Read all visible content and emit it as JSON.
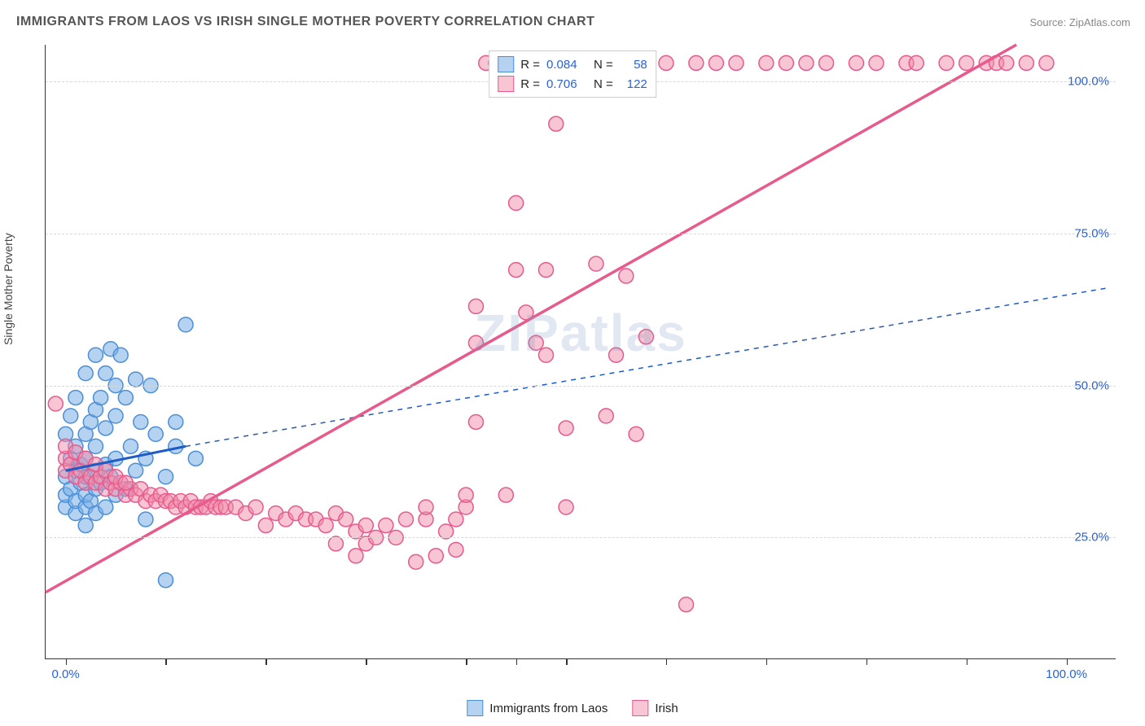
{
  "chart": {
    "type": "scatter",
    "title": "IMMIGRANTS FROM LAOS VS IRISH SINGLE MOTHER POVERTY CORRELATION CHART",
    "source_label": "Source: ZipAtlas.com",
    "ylabel": "Single Mother Poverty",
    "watermark": "ZIPatlas",
    "background_color": "#ffffff",
    "title_color": "#555555",
    "title_fontsize": 16,
    "axis_color": "#333333",
    "grid_color": "#d8d8d8",
    "tick_label_color": "#2962d9",
    "tick_fontsize": 15,
    "xlim": [
      -2,
      105
    ],
    "ylim": [
      5,
      106
    ],
    "ytick_values": [
      25,
      50,
      75,
      100
    ],
    "ytick_labels": [
      "25.0%",
      "50.0%",
      "75.0%",
      "100.0%"
    ],
    "xtick_marks": [
      0,
      10,
      20,
      30,
      40,
      45,
      50,
      60,
      70,
      80,
      90,
      100
    ],
    "xtick_labels": [
      {
        "pos": 0,
        "text": "0.0%"
      },
      {
        "pos": 100,
        "text": "100.0%"
      }
    ],
    "marker_radius": 9,
    "marker_stroke_width": 1.5,
    "series": [
      {
        "name": "Immigrants from Laos",
        "fill": "rgba(120, 175, 230, 0.55)",
        "stroke": "#4a8fd8",
        "swatch_fill": "rgba(120, 175, 230, 0.55)",
        "swatch_border": "#4a8fd8",
        "R": "0.084",
        "N": "58",
        "trend": {
          "solid": {
            "x1": 0,
            "y1": 36,
            "x2": 12,
            "y2": 40,
            "width": 3,
            "color": "#1e5bc6"
          },
          "dashed": {
            "x1": 12,
            "y1": 40,
            "x2": 104,
            "y2": 66,
            "width": 1.5,
            "color": "#1e5bc6",
            "dash": "6,6"
          }
        },
        "points": [
          [
            0,
            30
          ],
          [
            0,
            32
          ],
          [
            0,
            35
          ],
          [
            0.5,
            33
          ],
          [
            0.5,
            38
          ],
          [
            1,
            29
          ],
          [
            1,
            31
          ],
          [
            1,
            36
          ],
          [
            1,
            40
          ],
          [
            1.5,
            34
          ],
          [
            1.5,
            37
          ],
          [
            2,
            27
          ],
          [
            2,
            30
          ],
          [
            2,
            32
          ],
          [
            2,
            35
          ],
          [
            2,
            38
          ],
          [
            2,
            42
          ],
          [
            2.5,
            31
          ],
          [
            2.5,
            44
          ],
          [
            3,
            29
          ],
          [
            3,
            33
          ],
          [
            3,
            36
          ],
          [
            3,
            40
          ],
          [
            3,
            46
          ],
          [
            3.5,
            34
          ],
          [
            3.5,
            48
          ],
          [
            4,
            30
          ],
          [
            4,
            37
          ],
          [
            4,
            43
          ],
          [
            4,
            52
          ],
          [
            4.5,
            35
          ],
          [
            4.5,
            56
          ],
          [
            5,
            32
          ],
          [
            5,
            38
          ],
          [
            5,
            45
          ],
          [
            5,
            50
          ],
          [
            5.5,
            55
          ],
          [
            6,
            33
          ],
          [
            6,
            48
          ],
          [
            6.5,
            40
          ],
          [
            7,
            36
          ],
          [
            7,
            51
          ],
          [
            7.5,
            44
          ],
          [
            8,
            38
          ],
          [
            8,
            28
          ],
          [
            8.5,
            50
          ],
          [
            9,
            42
          ],
          [
            10,
            35
          ],
          [
            10,
            18
          ],
          [
            11,
            40
          ],
          [
            11,
            44
          ],
          [
            12,
            60
          ],
          [
            13,
            38
          ],
          [
            0,
            42
          ],
          [
            0.5,
            45
          ],
          [
            1,
            48
          ],
          [
            2,
            52
          ],
          [
            3,
            55
          ]
        ]
      },
      {
        "name": "Irish",
        "fill": "rgba(240, 140, 170, 0.5)",
        "stroke": "#e85a8c",
        "swatch_fill": "rgba(240, 140, 170, 0.5)",
        "swatch_border": "#e85a8c",
        "R": "0.706",
        "N": "122",
        "trend": {
          "solid": {
            "x1": -2,
            "y1": 16,
            "x2": 95,
            "y2": 106,
            "width": 3.5,
            "color": "#e85a8c"
          }
        },
        "points": [
          [
            0,
            36
          ],
          [
            0,
            38
          ],
          [
            0.5,
            37
          ],
          [
            1,
            35
          ],
          [
            1.5,
            36
          ],
          [
            2,
            34
          ],
          [
            2.5,
            35
          ],
          [
            3,
            34
          ],
          [
            3.5,
            35
          ],
          [
            4,
            33
          ],
          [
            4.5,
            34
          ],
          [
            5,
            33
          ],
          [
            5.5,
            34
          ],
          [
            6,
            32
          ],
          [
            6.5,
            33
          ],
          [
            7,
            32
          ],
          [
            7.5,
            33
          ],
          [
            8,
            31
          ],
          [
            8.5,
            32
          ],
          [
            9,
            31
          ],
          [
            9.5,
            32
          ],
          [
            10,
            31
          ],
          [
            10.5,
            31
          ],
          [
            11,
            30
          ],
          [
            11.5,
            31
          ],
          [
            12,
            30
          ],
          [
            12.5,
            31
          ],
          [
            13,
            30
          ],
          [
            13.5,
            30
          ],
          [
            14,
            30
          ],
          [
            14.5,
            31
          ],
          [
            15,
            30
          ],
          [
            15.5,
            30
          ],
          [
            16,
            30
          ],
          [
            17,
            30
          ],
          [
            18,
            29
          ],
          [
            19,
            30
          ],
          [
            20,
            27
          ],
          [
            21,
            29
          ],
          [
            22,
            28
          ],
          [
            23,
            29
          ],
          [
            24,
            28
          ],
          [
            25,
            28
          ],
          [
            26,
            27
          ],
          [
            27,
            29
          ],
          [
            27,
            24
          ],
          [
            28,
            28
          ],
          [
            29,
            26
          ],
          [
            29,
            22
          ],
          [
            30,
            27
          ],
          [
            30,
            24
          ],
          [
            31,
            25
          ],
          [
            32,
            27
          ],
          [
            33,
            25
          ],
          [
            34,
            28
          ],
          [
            35,
            21
          ],
          [
            36,
            28
          ],
          [
            36,
            30
          ],
          [
            37,
            22
          ],
          [
            38,
            26
          ],
          [
            39,
            23
          ],
          [
            39,
            28
          ],
          [
            40,
            30
          ],
          [
            40,
            32
          ],
          [
            41,
            44
          ],
          [
            41,
            57
          ],
          [
            41,
            63
          ],
          [
            42,
            103
          ],
          [
            43,
            103
          ],
          [
            44,
            103
          ],
          [
            44,
            32
          ],
          [
            45,
            103
          ],
          [
            45,
            80
          ],
          [
            45,
            69
          ],
          [
            46,
            103
          ],
          [
            46,
            62
          ],
          [
            47,
            57
          ],
          [
            48,
            55
          ],
          [
            48,
            69
          ],
          [
            49,
            93
          ],
          [
            49,
            103
          ],
          [
            50,
            30
          ],
          [
            50,
            43
          ],
          [
            51,
            103
          ],
          [
            52,
            103
          ],
          [
            53,
            70
          ],
          [
            54,
            45
          ],
          [
            55,
            103
          ],
          [
            55,
            55
          ],
          [
            56,
            103
          ],
          [
            56,
            68
          ],
          [
            57,
            42
          ],
          [
            58,
            58
          ],
          [
            58,
            103
          ],
          [
            60,
            103
          ],
          [
            62,
            14
          ],
          [
            63,
            103
          ],
          [
            65,
            103
          ],
          [
            67,
            103
          ],
          [
            70,
            103
          ],
          [
            72,
            103
          ],
          [
            74,
            103
          ],
          [
            76,
            103
          ],
          [
            79,
            103
          ],
          [
            81,
            103
          ],
          [
            84,
            103
          ],
          [
            85,
            103
          ],
          [
            88,
            103
          ],
          [
            90,
            103
          ],
          [
            92,
            103
          ],
          [
            93,
            103
          ],
          [
            94,
            103
          ],
          [
            96,
            103
          ],
          [
            98,
            103
          ],
          [
            -1,
            47
          ],
          [
            0,
            40
          ],
          [
            1,
            39
          ],
          [
            2,
            38
          ],
          [
            3,
            37
          ],
          [
            4,
            36
          ],
          [
            5,
            35
          ],
          [
            6,
            34
          ]
        ]
      }
    ],
    "legend_bottom": [
      {
        "swatch_fill": "rgba(120, 175, 230, 0.55)",
        "swatch_border": "#4a8fd8",
        "label": "Immigrants from Laos"
      },
      {
        "swatch_fill": "rgba(240, 140, 170, 0.5)",
        "swatch_border": "#e85a8c",
        "label": "Irish"
      }
    ]
  }
}
